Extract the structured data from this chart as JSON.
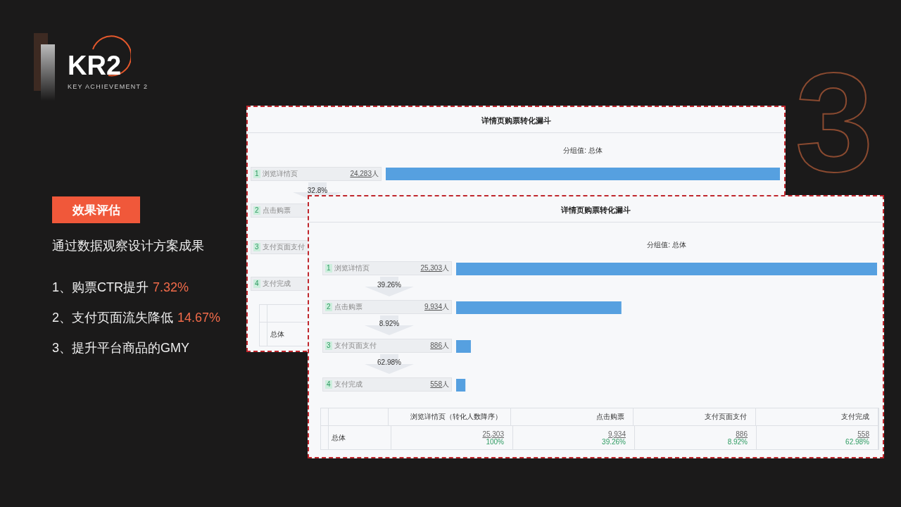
{
  "chart_data": [
    {
      "type": "other",
      "title": "KR2",
      "subtitle": "KEY ACHIEVEMENT 2",
      "annotations": [
        "效果评估",
        "通过数据观察设计方案成果",
        "1、购票CTR提升",
        "7.32%",
        "2、支付页面流失降低",
        "14.67%",
        "3、提升平台商品的GMY",
        "3"
      ]
    },
    {
      "type": "bar",
      "orientation": "horizontal",
      "title": "详情页购票转化漏斗",
      "subtitle": "分组值: 总体",
      "categories": [
        "浏览详情页",
        "点击购票",
        "支付页面支付",
        "支付完成"
      ],
      "values": [
        24283,
        null,
        null,
        null
      ],
      "value_labels": [
        "24,283",
        null,
        null,
        null
      ],
      "color": "#56a0e0",
      "legend": false,
      "grid": false,
      "annotations": [
        "1",
        "2",
        "3",
        "4",
        "32.8%",
        "人",
        "总体"
      ]
    },
    {
      "type": "bar",
      "orientation": "horizontal",
      "title": "详情页购票转化漏斗",
      "subtitle": "分组值: 总体",
      "categories": [
        "浏览详情页",
        "点击购票",
        "支付页面支付",
        "支付完成"
      ],
      "values": [
        25303,
        9934,
        886,
        558
      ],
      "value_labels": [
        "25,303",
        "9,934",
        "886",
        "558"
      ],
      "color": "#56a0e0",
      "legend": false,
      "grid": false,
      "annotations": [
        "1",
        "2",
        "3",
        "4",
        "39.26%",
        "8.92%",
        "62.98%",
        "人",
        "（转化人数降序）",
        "总体",
        "100%"
      ]
    }
  ]
}
